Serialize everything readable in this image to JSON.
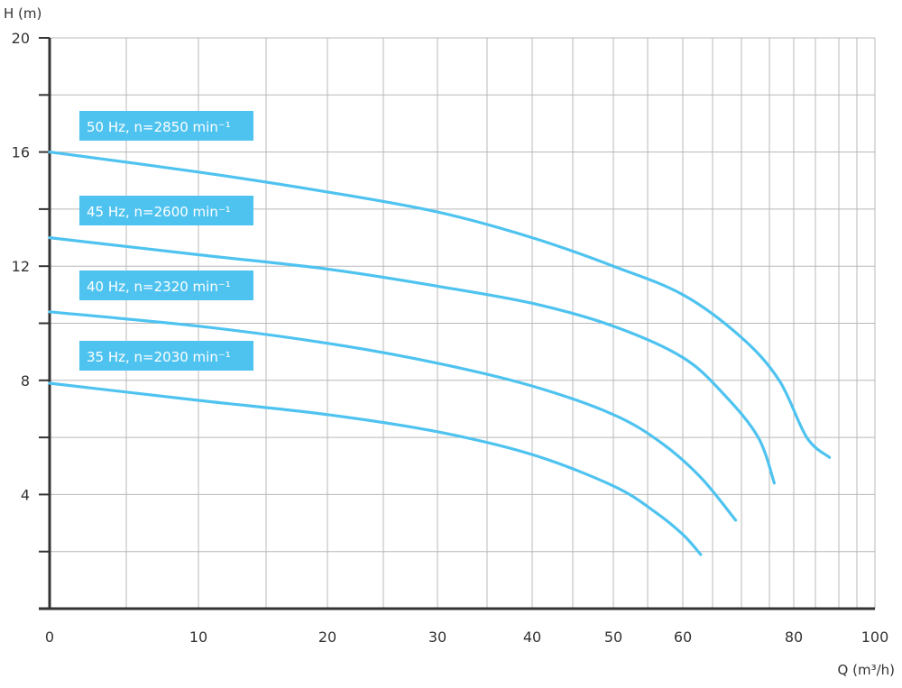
{
  "chart_data": {
    "type": "line",
    "title": "",
    "xlabel": "Q (m³/h)",
    "ylabel": "H (m)",
    "xlim": [
      0,
      100
    ],
    "ylim": [
      0,
      20
    ],
    "x_ticks": [
      0,
      10,
      20,
      30,
      40,
      50,
      60,
      80,
      100
    ],
    "y_ticks": [
      4,
      8,
      12,
      16,
      20
    ],
    "x_gridlines": [
      0,
      5,
      10,
      15,
      20,
      25,
      30,
      35,
      40,
      45,
      50,
      55,
      60,
      65,
      70,
      75,
      80,
      85,
      90,
      95,
      100
    ],
    "y_gridlines": [
      2,
      4,
      6,
      8,
      10,
      12,
      14,
      16,
      18,
      20
    ],
    "grid": true,
    "color": "#4fc3f0",
    "series": [
      {
        "name": "50 Hz, n=2850 min⁻¹",
        "points": [
          [
            0,
            16.0
          ],
          [
            10,
            15.3
          ],
          [
            20,
            14.6
          ],
          [
            30,
            13.9
          ],
          [
            40,
            13.0
          ],
          [
            50,
            12.0
          ],
          [
            60,
            11.0
          ],
          [
            70,
            9.5
          ],
          [
            77,
            8.0
          ],
          [
            83,
            6.0
          ],
          [
            88,
            5.3
          ]
        ]
      },
      {
        "name": "45 Hz, n=2600 min⁻¹",
        "points": [
          [
            0,
            13.0
          ],
          [
            10,
            12.4
          ],
          [
            20,
            11.9
          ],
          [
            30,
            11.3
          ],
          [
            40,
            10.7
          ],
          [
            50,
            9.9
          ],
          [
            60,
            8.8
          ],
          [
            67,
            7.5
          ],
          [
            73,
            6.0
          ],
          [
            76,
            4.4
          ]
        ]
      },
      {
        "name": "40 Hz, n=2320 min⁻¹",
        "points": [
          [
            0,
            10.4
          ],
          [
            10,
            9.9
          ],
          [
            20,
            9.3
          ],
          [
            30,
            8.6
          ],
          [
            40,
            7.8
          ],
          [
            50,
            6.8
          ],
          [
            57,
            5.8
          ],
          [
            63,
            4.6
          ],
          [
            69,
            3.1
          ]
        ]
      },
      {
        "name": "35 Hz, n=2030 min⁻¹",
        "points": [
          [
            0,
            7.9
          ],
          [
            10,
            7.3
          ],
          [
            20,
            6.8
          ],
          [
            30,
            6.2
          ],
          [
            40,
            5.4
          ],
          [
            50,
            4.3
          ],
          [
            56,
            3.4
          ],
          [
            60,
            2.6
          ],
          [
            63,
            1.9
          ]
        ]
      }
    ]
  }
}
